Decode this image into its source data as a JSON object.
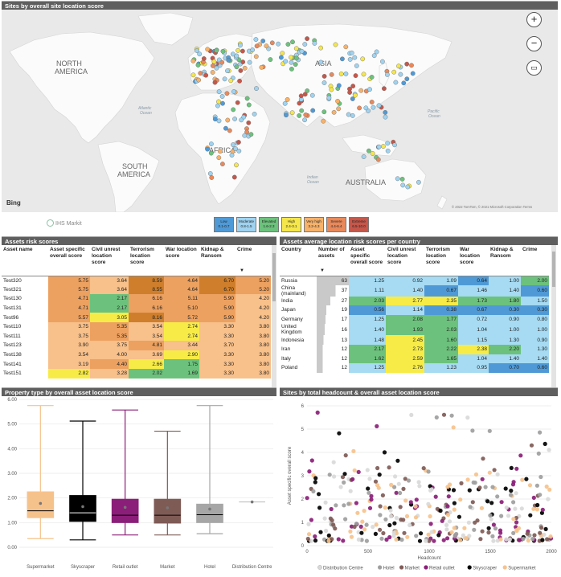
{
  "map_panel": {
    "title": "Sites by overall site location score",
    "labels": {
      "north_america": "NORTH\nAMERICA",
      "south_america": "SOUTH\nAMERICA",
      "europe": "EUROPE",
      "africa": "AFRICA",
      "asia": "ASIA",
      "australia": "AUSTRALIA",
      "atlantic": "Atlantic\nOcean",
      "pacific": "Pacific\nOcean",
      "indian": "Indian\nOcean"
    },
    "bing": "Bing",
    "copyright": "© 2022 TomTom, © 2021 Microsoft Corporation  Terms",
    "zoom_in": "+",
    "zoom_out": "−",
    "ihs_logo": "IHS Markit",
    "legend": [
      {
        "label": "Low",
        "range": "0.1-0.7",
        "color": "#4f9ad6"
      },
      {
        "label": "Moderate",
        "range": "0.8-1.5",
        "color": "#9fd3f0"
      },
      {
        "label": "Elevated",
        "range": "1.6-2.3",
        "color": "#6cc27c"
      },
      {
        "label": "High",
        "range": "2.4-3.1",
        "color": "#f5e64c"
      },
      {
        "label": "Very high",
        "range": "3.2-4.3",
        "color": "#f6b26b"
      },
      {
        "label": "Severe",
        "range": "4.4-6.4",
        "color": "#e8895b"
      },
      {
        "label": "Extreme",
        "range": "6.5-10.0",
        "color": "#c5574a"
      }
    ]
  },
  "assets_table": {
    "title": "Assets risk scores",
    "headers": [
      "Asset name",
      "Asset specific overall score",
      "Civil unrest location score",
      "Terrorism location score",
      "War location score",
      "Kidnap & Ransom",
      "Crime"
    ],
    "rows": [
      [
        "Test320",
        "5.75",
        "3.64",
        "8.59",
        "4.64",
        "6.70",
        "5.20"
      ],
      [
        "Test321",
        "5.75",
        "3.64",
        "8.55",
        "4.64",
        "6.70",
        "5.20"
      ],
      [
        "Test130",
        "4.71",
        "2.17",
        "6.16",
        "5.11",
        "5.90",
        "4.20"
      ],
      [
        "Test131",
        "4.71",
        "2.17",
        "6.16",
        "5.10",
        "5.90",
        "4.20"
      ],
      [
        "Test96",
        "5.57",
        "3.05",
        "8.16",
        "5.72",
        "5.90",
        "4.20"
      ],
      [
        "Test110",
        "3.75",
        "5.35",
        "3.54",
        "2.74",
        "3.30",
        "3.80"
      ],
      [
        "Test111",
        "3.75",
        "5.35",
        "3.54",
        "2.74",
        "3.30",
        "3.80"
      ],
      [
        "Test123",
        "3.90",
        "3.75",
        "4.81",
        "3.44",
        "3.70",
        "3.80"
      ],
      [
        "Test138",
        "3.54",
        "4.00",
        "3.69",
        "2.90",
        "3.30",
        "3.80"
      ],
      [
        "Test141",
        "3.19",
        "4.40",
        "2.66",
        "1.75",
        "3.30",
        "3.80"
      ],
      [
        "Test151",
        "2.82",
        "3.28",
        "2.02",
        "1.69",
        "3.30",
        "3.80"
      ]
    ]
  },
  "country_table": {
    "title": "Assets average location risk scores per country",
    "headers": [
      "Country",
      "Number of assets",
      "Asset specific overall score",
      "Civil unrest location score",
      "Terrorism location score",
      "War location score",
      "Kidnap & Ransom",
      "Crime"
    ],
    "rows": [
      [
        "Russia",
        "63",
        "1.25",
        "0.92",
        "1.09",
        "0.64",
        "1.00",
        "2.00"
      ],
      [
        "China (mainland)",
        "37",
        "1.11",
        "1.40",
        "0.67",
        "1.46",
        "1.40",
        "0.60"
      ],
      [
        "India",
        "27",
        "2.03",
        "2.77",
        "2.35",
        "1.73",
        "1.80",
        "1.50"
      ],
      [
        "Japan",
        "19",
        "0.56",
        "1.14",
        "0.38",
        "0.67",
        "0.30",
        "0.30"
      ],
      [
        "Germany",
        "17",
        "1.25",
        "2.08",
        "1.77",
        "0.72",
        "0.90",
        "0.80"
      ],
      [
        "United Kingdom",
        "16",
        "1.40",
        "1.93",
        "2.03",
        "1.04",
        "1.00",
        "1.00"
      ],
      [
        "Indonesia",
        "13",
        "1.48",
        "2.45",
        "1.60",
        "1.15",
        "1.30",
        "0.90"
      ],
      [
        "Iran",
        "12",
        "2.17",
        "2.73",
        "2.22",
        "2.38",
        "2.20",
        "1.30"
      ],
      [
        "Italy",
        "12",
        "1.62",
        "2.59",
        "1.65",
        "1.04",
        "1.40",
        "1.40"
      ],
      [
        "Poland",
        "12",
        "1.25",
        "2.76",
        "1.23",
        "0.95",
        "0.70",
        "0.60"
      ]
    ]
  },
  "boxplot_panel": {
    "title": "Property type by overall asset location score"
  },
  "scatter_panel": {
    "title": "Sites by total headcount & overall asset location score"
  },
  "colors": {
    "low": "#4f9ad6",
    "moderate": "#a6dbf3",
    "elevated": "#6cc27c",
    "high": "#f7ec47",
    "very_high": "#f8c08a",
    "severe": "#eda160",
    "extreme": "#cf7f2c",
    "header_bar": "#5f5f5f"
  },
  "chart_data": [
    {
      "type": "box",
      "title": "Property type by overall asset location score",
      "categories": [
        "Supermarket",
        "Skyscraper",
        "Retail outlet",
        "Market",
        "Hotel",
        "Distribution Centre"
      ],
      "ylim": [
        0,
        6
      ],
      "yticks": [
        "0.00",
        "1.00",
        "2.00",
        "3.00",
        "4.00",
        "5.00",
        "6.00"
      ],
      "series": [
        {
          "name": "Supermarket",
          "color": "#f6c28c",
          "min": 0.35,
          "q1": 1.2,
          "median": 1.48,
          "q3": 2.25,
          "max": 5.75,
          "mean": 1.78
        },
        {
          "name": "Skyscraper",
          "color": "#000000",
          "min": 0.3,
          "q1": 1.05,
          "median": 1.4,
          "q3": 2.1,
          "max": 5.12,
          "mean": 1.65
        },
        {
          "name": "Retail outlet",
          "color": "#8b1e78",
          "min": 0.5,
          "q1": 1.0,
          "median": 1.3,
          "q3": 1.95,
          "max": 5.57,
          "mean": 1.62
        },
        {
          "name": "Market",
          "color": "#7f5b56",
          "min": 0.5,
          "q1": 0.98,
          "median": 1.3,
          "q3": 1.95,
          "max": 4.71,
          "mean": 1.6
        },
        {
          "name": "Hotel",
          "color": "#a6a6a6",
          "min": 0.55,
          "q1": 1.0,
          "median": 1.32,
          "q3": 1.75,
          "max": 5.75,
          "mean": 1.55
        },
        {
          "name": "Distribution Centre",
          "color": "#b8b8b8",
          "min": 1.84,
          "q1": 1.84,
          "median": 1.84,
          "q3": 1.84,
          "max": 1.84,
          "mean": 1.84
        }
      ]
    },
    {
      "type": "scatter",
      "title": "Sites by total headcount & overall asset location score",
      "xlabel": "Headcount",
      "ylabel": "Asset specific overall score",
      "xlim": [
        0,
        2000
      ],
      "ylim": [
        0,
        6
      ],
      "xticks": [
        "0",
        "500",
        "1000",
        "1500",
        "2000"
      ],
      "yticks": [
        "0",
        "1",
        "2",
        "3",
        "4",
        "5",
        "6"
      ],
      "series": [
        {
          "name": "Distribution Centre",
          "color": "#d9d9d9"
        },
        {
          "name": "Hotel",
          "color": "#9e9e9e"
        },
        {
          "name": "Market",
          "color": "#7f5b56"
        },
        {
          "name": "Retail outlet",
          "color": "#8b1e78"
        },
        {
          "name": "Skyscraper",
          "color": "#000000"
        },
        {
          "name": "Supermarket",
          "color": "#f6c28c"
        }
      ]
    }
  ]
}
